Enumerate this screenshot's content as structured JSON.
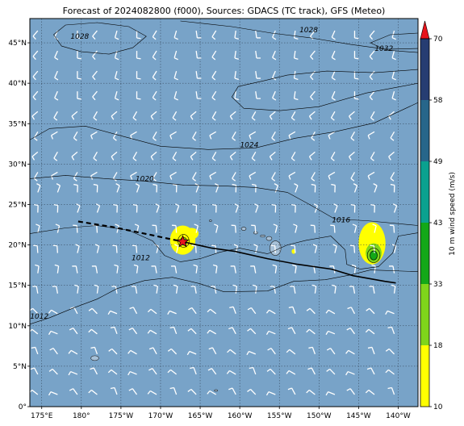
{
  "title": "Forecast of 2024082800 (f000), Sources: GDACS (TC track), GFS (Meteo)",
  "colors": {
    "ocean": "#78a3c8",
    "land": "#a7c1d8",
    "wind_barb": "#ffffff",
    "contour": "#000000",
    "track": "#000000",
    "storm_marker": "#e8141c"
  },
  "map": {
    "lon_min": 173.5,
    "lon_max": 222.5,
    "lat_min": 0,
    "lat_max": 48,
    "x_ticks": [
      {
        "value": 175,
        "label": "175°E"
      },
      {
        "value": 180,
        "label": "180°"
      },
      {
        "value": 185,
        "label": "175°W"
      },
      {
        "value": 190,
        "label": "170°W"
      },
      {
        "value": 195,
        "label": "165°W"
      },
      {
        "value": 200,
        "label": "160°W"
      },
      {
        "value": 205,
        "label": "155°W"
      },
      {
        "value": 210,
        "label": "150°W"
      },
      {
        "value": 215,
        "label": "145°W"
      },
      {
        "value": 220,
        "label": "140°W"
      }
    ],
    "y_ticks": [
      {
        "value": 0,
        "label": "0°"
      },
      {
        "value": 5,
        "label": "5°N"
      },
      {
        "value": 10,
        "label": "10°N"
      },
      {
        "value": 15,
        "label": "15°N"
      },
      {
        "value": 20,
        "label": "20°N"
      },
      {
        "value": 25,
        "label": "25°N"
      },
      {
        "value": 30,
        "label": "30°N"
      },
      {
        "value": 35,
        "label": "35°N"
      },
      {
        "value": 40,
        "label": "40°N"
      },
      {
        "value": 45,
        "label": "45°N"
      }
    ],
    "isobar_labels": [
      {
        "text": "1028",
        "lon": 179.8,
        "lat": 45.5
      },
      {
        "text": "1028",
        "lon": 208.7,
        "lat": 46.3
      },
      {
        "text": "1032",
        "lon": 218.2,
        "lat": 44.0
      },
      {
        "text": "1024",
        "lon": 201.2,
        "lat": 32.1
      },
      {
        "text": "1020",
        "lon": 188.0,
        "lat": 27.9
      },
      {
        "text": "1016",
        "lon": 212.8,
        "lat": 22.8
      },
      {
        "text": "1012",
        "lon": 187.5,
        "lat": 18.1
      },
      {
        "text": "1012",
        "lon": 174.7,
        "lat": 10.9
      }
    ],
    "storm": {
      "lon": 192.8,
      "lat": 20.4
    },
    "track_forecast": [
      [
        179.6,
        22.9
      ],
      [
        184,
        22.2
      ],
      [
        188.5,
        21.3
      ],
      [
        192.8,
        20.4
      ]
    ],
    "track_observed": [
      [
        192.8,
        20.4
      ],
      [
        196.5,
        19.6
      ],
      [
        199.4,
        19.2
      ],
      [
        203.5,
        18.3
      ],
      [
        207.3,
        17.6
      ],
      [
        211.6,
        17.0
      ],
      [
        214.3,
        16.2
      ],
      [
        218.3,
        15.5
      ],
      [
        219.7,
        15.3
      ]
    ]
  },
  "colorbar": {
    "label": "10 m wind speed (m/s)",
    "levels": [
      10,
      18,
      33,
      43,
      49,
      58,
      70
    ],
    "level_labels": [
      "10",
      "18",
      "33",
      "43",
      "49",
      "58",
      "70"
    ],
    "colors": [
      "#ffff00",
      "#7fd51b",
      "#13a818",
      "#0aa18f",
      "#27668a",
      "#263d72"
    ],
    "extend_color": "#e8141c"
  }
}
